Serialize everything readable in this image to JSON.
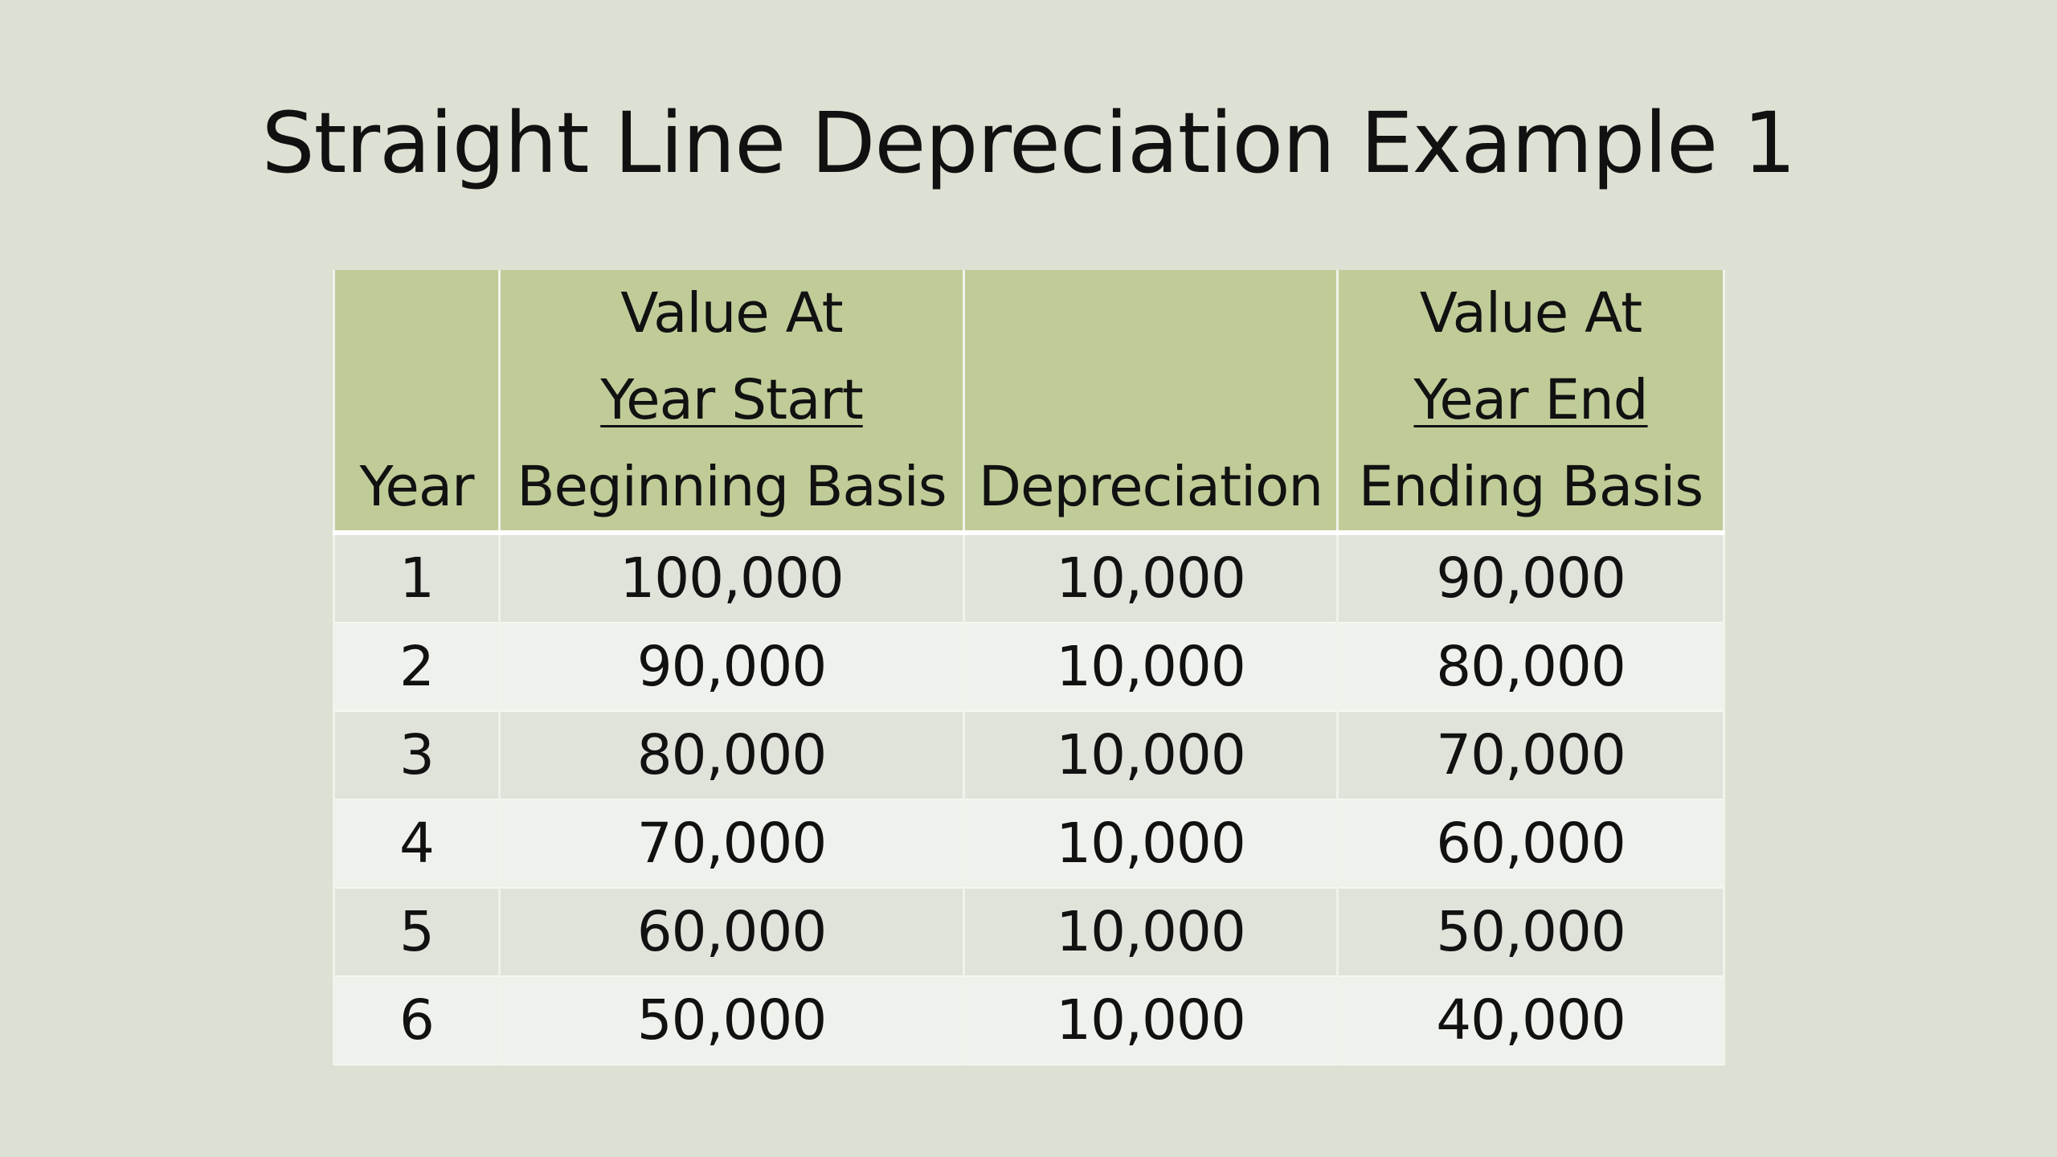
{
  "title": "Straight Line Depreciation Example 1",
  "table": {
    "headers": {
      "year": "Year",
      "beginning": {
        "line1": "Value At",
        "line2": "Year Start",
        "line3": "Beginning Basis"
      },
      "depreciation": "Depreciation",
      "ending": {
        "line1": "Value At",
        "line2": "Year End",
        "line3": "Ending Basis"
      }
    },
    "rows": [
      {
        "year": "1",
        "beginning": "100,000",
        "depreciation": "10,000",
        "ending": "90,000"
      },
      {
        "year": "2",
        "beginning": "90,000",
        "depreciation": "10,000",
        "ending": "80,000"
      },
      {
        "year": "3",
        "beginning": "80,000",
        "depreciation": "10,000",
        "ending": "70,000"
      },
      {
        "year": "4",
        "beginning": "70,000",
        "depreciation": "10,000",
        "ending": "60,000"
      },
      {
        "year": "5",
        "beginning": "60,000",
        "depreciation": "10,000",
        "ending": "50,000"
      },
      {
        "year": "6",
        "beginning": "50,000",
        "depreciation": "10,000",
        "ending": "40,000"
      }
    ]
  },
  "colors": {
    "background": "#dde1d3",
    "header": "#bfcc98",
    "row_odd": "#e0e3da",
    "row_even": "#eff2ec"
  }
}
